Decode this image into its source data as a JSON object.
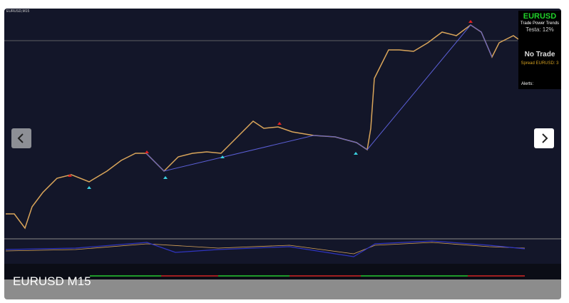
{
  "screen": {
    "chart_label": "EURUSD,M15",
    "caption": "EURUSD M15",
    "panel": {
      "symbol": "EURUSD",
      "title": "Trade Power Trends",
      "testa": "Testa: 12%",
      "status": "No Trade",
      "spread": "Spread EURUSD: 3",
      "alerts": "Alerts:"
    }
  }
}
